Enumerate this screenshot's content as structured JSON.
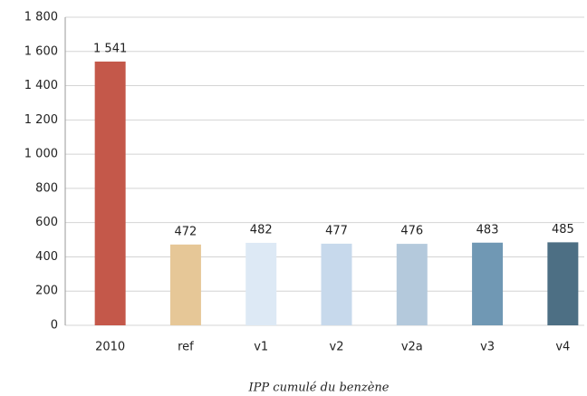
{
  "chart_data": {
    "type": "bar",
    "categories": [
      "2010",
      "ref",
      "v1",
      "v2",
      "v2a",
      "v3",
      "v4"
    ],
    "values": [
      1541,
      472,
      482,
      477,
      476,
      483,
      485
    ],
    "value_labels": [
      "1 541",
      "472",
      "482",
      "477",
      "476",
      "483",
      "485"
    ],
    "colors": [
      "#c4584a",
      "#e6c797",
      "#dde9f5",
      "#c7d9ec",
      "#b4c9dc",
      "#7098b4",
      "#4d6f84"
    ],
    "ylim": [
      0,
      1800
    ],
    "yticks": [
      0,
      200,
      400,
      600,
      800,
      {
        "value": 1000,
        "label": "1 000"
      },
      {
        "value": 1200,
        "label": "1 200"
      },
      {
        "value": 1400,
        "label": "1 400"
      },
      {
        "value": 1600,
        "label": "1 600"
      },
      {
        "value": 1800,
        "label": "1 800"
      }
    ],
    "grid": true,
    "caption": "IPP cumulé du benzène"
  }
}
